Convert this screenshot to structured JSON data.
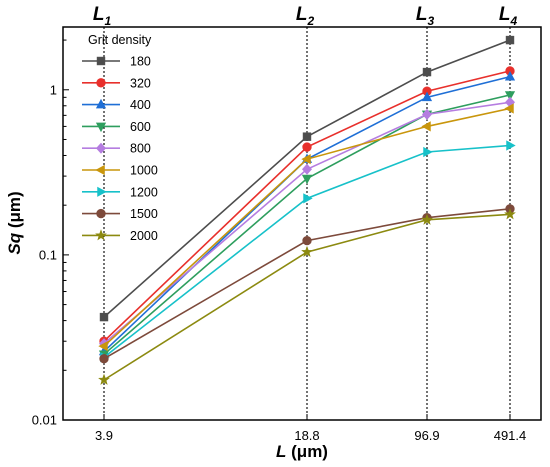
{
  "chart_data": {
    "type": "line",
    "xlabel_var": "L",
    "xlabel_unit": " (μm)",
    "ylabel_var": "Sq",
    "ylabel_unit": " (μm)",
    "y_scale": "log",
    "ylim": [
      0.01,
      2.4
    ],
    "x": [
      "3.9",
      "18.8",
      "96.9",
      "491.4"
    ],
    "x_tick_labels": [
      "3.9",
      "18.8",
      "96.9",
      "491.4"
    ],
    "y_tick_labels": [
      "0.01",
      "0.1",
      "1"
    ],
    "y_ticks": [
      0.01,
      0.1,
      1
    ],
    "grid": false,
    "legend_title": "Grit density",
    "legend_position": "top-left",
    "reference_lines": [
      {
        "label": "L",
        "sub": "1"
      },
      {
        "label": "L",
        "sub": "2"
      },
      {
        "label": "L",
        "sub": "3"
      },
      {
        "label": "L",
        "sub": "4"
      }
    ],
    "series": [
      {
        "name": "180",
        "color": "#4d4d4d",
        "marker": "square",
        "values": [
          0.042,
          0.52,
          1.28,
          2.0
        ]
      },
      {
        "name": "320",
        "color": "#e8302c",
        "marker": "circle",
        "values": [
          0.03,
          0.45,
          0.98,
          1.3
        ]
      },
      {
        "name": "400",
        "color": "#1f6fd6",
        "marker": "triangle-up",
        "values": [
          0.026,
          0.38,
          0.9,
          1.2
        ]
      },
      {
        "name": "600",
        "color": "#2e9e5e",
        "marker": "triangle-down",
        "values": [
          0.025,
          0.29,
          0.71,
          0.93
        ]
      },
      {
        "name": "800",
        "color": "#b57de0",
        "marker": "diamond",
        "values": [
          0.029,
          0.33,
          0.71,
          0.84
        ]
      },
      {
        "name": "1000",
        "color": "#c9960c",
        "marker": "triangle-left",
        "values": [
          0.028,
          0.38,
          0.6,
          0.77
        ]
      },
      {
        "name": "1200",
        "color": "#17c1c9",
        "marker": "triangle-right",
        "values": [
          0.024,
          0.22,
          0.42,
          0.46
        ]
      },
      {
        "name": "1500",
        "color": "#7d4a3b",
        "marker": "circle",
        "values": [
          0.0235,
          0.122,
          0.168,
          0.19
        ]
      },
      {
        "name": "2000",
        "color": "#8c8a10",
        "marker": "star",
        "values": [
          0.0175,
          0.104,
          0.163,
          0.176
        ]
      }
    ]
  }
}
